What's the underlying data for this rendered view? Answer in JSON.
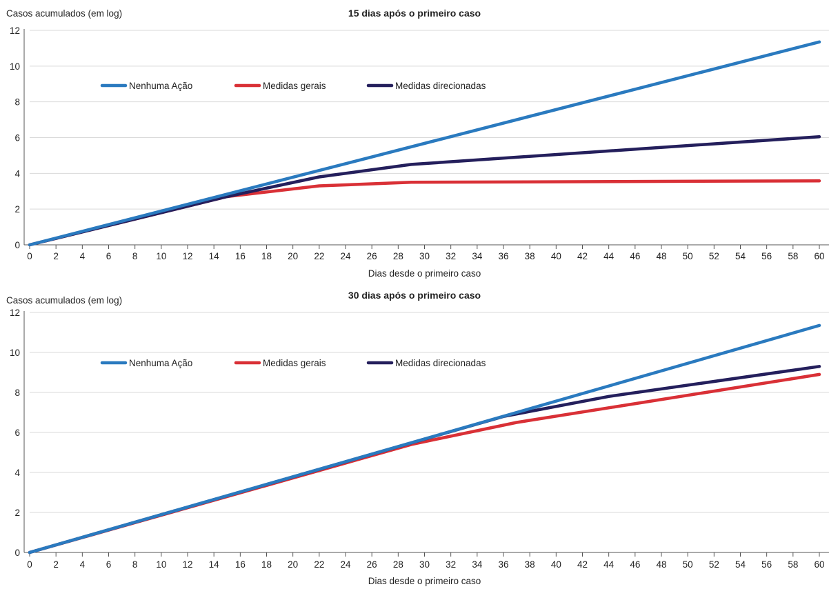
{
  "chart_data": [
    {
      "type": "line",
      "title": "15 dias após o primeiro caso",
      "ylabel": "Casos acumulados (em log)",
      "xlabel": "Dias desde o primeiro caso",
      "xlim": [
        0,
        60
      ],
      "ylim": [
        0,
        12
      ],
      "x_ticks": [
        0,
        2,
        4,
        6,
        8,
        10,
        12,
        14,
        16,
        18,
        20,
        22,
        24,
        26,
        28,
        30,
        32,
        34,
        36,
        38,
        40,
        42,
        44,
        46,
        48,
        50,
        52,
        54,
        56,
        58,
        60
      ],
      "y_ticks": [
        0,
        2,
        4,
        6,
        8,
        10,
        12
      ],
      "grid": "horizontal",
      "legend": "top-left",
      "series": [
        {
          "name": "Nenhuma Ação",
          "color": "#2a7abf",
          "points": [
            [
              0,
              0
            ],
            [
              60,
              11.35
            ]
          ]
        },
        {
          "name": "Medidas gerais",
          "color": "#d93036",
          "points": [
            [
              0,
              0
            ],
            [
              15,
              2.7
            ],
            [
              22,
              3.3
            ],
            [
              29,
              3.5
            ],
            [
              60,
              3.58
            ]
          ]
        },
        {
          "name": "Medidas direcionadas",
          "color": "#241f5c",
          "points": [
            [
              0,
              0
            ],
            [
              15,
              2.7
            ],
            [
              22,
              3.8
            ],
            [
              29,
              4.5
            ],
            [
              44,
              5.25
            ],
            [
              60,
              6.05
            ]
          ]
        }
      ]
    },
    {
      "type": "line",
      "title": "30 dias após o primeiro caso",
      "ylabel": "Casos acumulados (em log)",
      "xlabel": "Dias desde o primeiro caso",
      "xlim": [
        0,
        60
      ],
      "ylim": [
        0,
        12
      ],
      "x_ticks": [
        0,
        2,
        4,
        6,
        8,
        10,
        12,
        14,
        16,
        18,
        20,
        22,
        24,
        26,
        28,
        30,
        32,
        34,
        36,
        38,
        40,
        42,
        44,
        46,
        48,
        50,
        52,
        54,
        56,
        58,
        60
      ],
      "y_ticks": [
        0,
        2,
        4,
        6,
        8,
        10,
        12
      ],
      "grid": "horizontal",
      "legend": "top-left",
      "series": [
        {
          "name": "Nenhuma Ação",
          "color": "#2a7abf",
          "points": [
            [
              0,
              0
            ],
            [
              60,
              11.35
            ]
          ]
        },
        {
          "name": "Medidas gerais",
          "color": "#d93036",
          "points": [
            [
              0,
              0
            ],
            [
              29,
              5.4
            ],
            [
              37,
              6.5
            ],
            [
              60,
              8.9
            ]
          ]
        },
        {
          "name": "Medidas direcionadas",
          "color": "#241f5c",
          "points": [
            [
              0,
              0
            ],
            [
              36,
              6.8
            ],
            [
              44,
              7.8
            ],
            [
              60,
              9.3
            ]
          ]
        }
      ]
    }
  ]
}
